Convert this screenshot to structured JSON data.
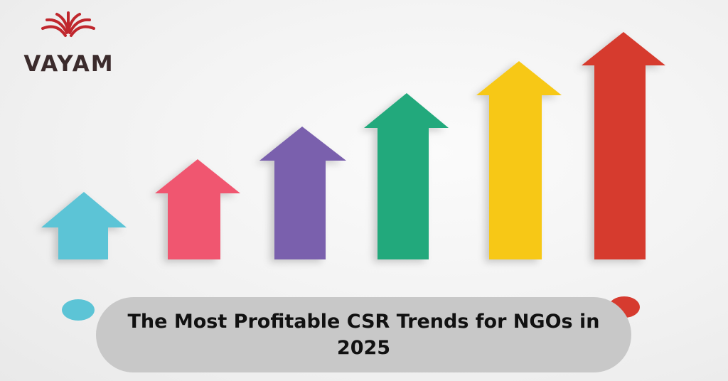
{
  "logo": {
    "text": "VAYAM"
  },
  "banner": {
    "title": "The Most Profitable CSR Trends for NGOs in 2025"
  }
}
